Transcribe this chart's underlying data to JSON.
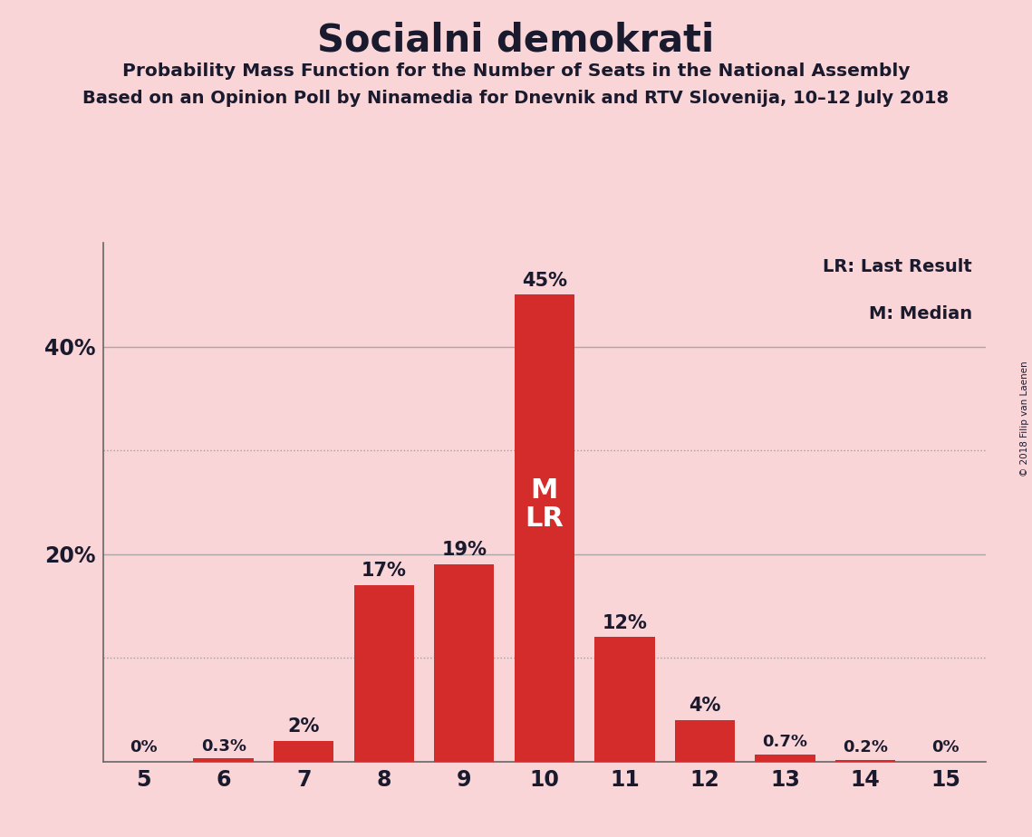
{
  "title": "Socialni demokrati",
  "subtitle1": "Probability Mass Function for the Number of Seats in the National Assembly",
  "subtitle2": "Based on an Opinion Poll by Ninamedia for Dnevnik and RTV Slovenija, 10–12 July 2018",
  "copyright": "© 2018 Filip van Laenen",
  "categories": [
    5,
    6,
    7,
    8,
    9,
    10,
    11,
    12,
    13,
    14,
    15
  ],
  "values": [
    0.0,
    0.3,
    2.0,
    17.0,
    19.0,
    45.0,
    12.0,
    4.0,
    0.7,
    0.2,
    0.0
  ],
  "labels": [
    "0%",
    "0.3%",
    "2%",
    "17%",
    "19%",
    "45%",
    "12%",
    "4%",
    "0.7%",
    "0.2%",
    "0%"
  ],
  "bar_color": "#D42B2B",
  "background_color": "#F9D5D8",
  "text_color": "#1a1a2e",
  "median_bar_cat": 10,
  "lr_bar_cat": 10,
  "legend_lr": "LR: Last Result",
  "legend_m": "M: Median",
  "ylim": [
    0,
    50
  ],
  "dotted_lines": [
    10,
    30
  ],
  "solid_lines": [
    20,
    40
  ],
  "solid_line_color": "#999999",
  "dotted_line_color": "#999999",
  "bar_width": 0.75
}
